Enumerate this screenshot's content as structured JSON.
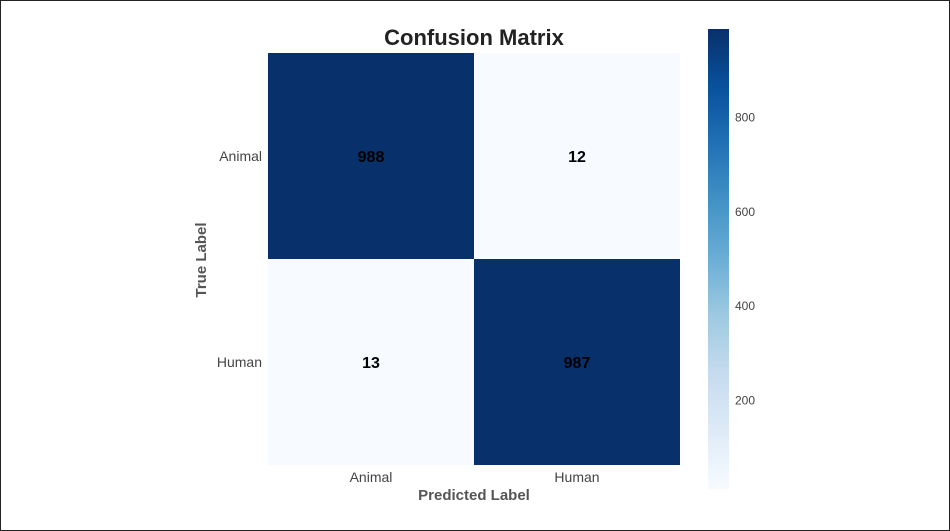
{
  "chart_data": {
    "type": "heatmap",
    "title": "Confusion Matrix",
    "xlabel": "Predicted Label",
    "ylabel": "True Label",
    "x_categories": [
      "Animal",
      "Human"
    ],
    "y_categories": [
      "Animal",
      "Human"
    ],
    "values": [
      [
        988,
        12
      ],
      [
        13,
        987
      ]
    ],
    "colormap": "Blues",
    "colors": {
      "low": "#f7fbff",
      "high": "#08306b"
    },
    "colorbar": {
      "min": 12,
      "max": 988,
      "ticks": [
        200,
        400,
        600,
        800
      ],
      "tick_labels": [
        "200",
        "400",
        "600",
        "800"
      ]
    },
    "grid": false
  }
}
